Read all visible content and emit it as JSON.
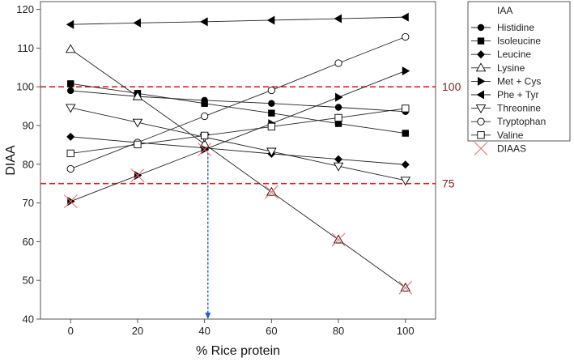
{
  "chart_data": {
    "type": "line",
    "xlabel": "% Rice protein",
    "ylabel": "DIAA",
    "x": [
      0,
      20,
      40,
      60,
      80,
      100
    ],
    "xlim": [
      -9,
      109
    ],
    "ylim": [
      40,
      122
    ],
    "xticks": [
      "0",
      "20",
      "40",
      "60",
      "80",
      "100"
    ],
    "yticks": [
      "40",
      "50",
      "60",
      "70",
      "80",
      "90",
      "100",
      "110",
      "120"
    ],
    "grid": false,
    "legend": {
      "title": "IAA",
      "placement": "right"
    },
    "series": [
      {
        "name": "Histidine",
        "marker": "circle-filled",
        "values": [
          99,
          97.5,
          96.5,
          95.7,
          94.7,
          93.6
        ]
      },
      {
        "name": "Isoleucine",
        "marker": "square-filled",
        "values": [
          100.8,
          98.3,
          95.7,
          93.2,
          90.5,
          88.0
        ]
      },
      {
        "name": "Leucine",
        "marker": "diamond-filled",
        "values": [
          87.1,
          85.6,
          84.2,
          82.7,
          81.3,
          79.9
        ]
      },
      {
        "name": "Lysine",
        "marker": "triangle-up-open",
        "values": [
          109.7,
          97.5,
          85.2,
          72.8,
          60.5,
          48.1
        ]
      },
      {
        "name": "Met + Cys",
        "marker": "triangle-right-filled",
        "values": [
          70.4,
          77.1,
          83.8,
          90.5,
          97.3,
          104.1
        ]
      },
      {
        "name": "Phe + Tyr",
        "marker": "triangle-left-filled",
        "values": [
          116.1,
          116.5,
          116.8,
          117.2,
          117.6,
          118.0
        ]
      },
      {
        "name": "Threonine",
        "marker": "triangle-down-open",
        "values": [
          94.6,
          90.8,
          87.0,
          83.3,
          79.5,
          75.8
        ]
      },
      {
        "name": "Tryptophan",
        "marker": "circle-open",
        "values": [
          78.8,
          85.6,
          92.4,
          99.1,
          106.1,
          112.9
        ]
      },
      {
        "name": "Valine",
        "marker": "square-open",
        "values": [
          82.8,
          85.1,
          87.4,
          89.7,
          92.0,
          94.4
        ]
      },
      {
        "name": "DIAAS",
        "marker": "x-red",
        "line": false,
        "values": [
          70.4,
          77.1,
          83.8,
          72.8,
          60.5,
          48.1
        ]
      }
    ],
    "reference_lines": [
      {
        "y": 100,
        "label": "100",
        "color": "#dd2222"
      },
      {
        "y": 75,
        "label": "75",
        "color": "#dd2222"
      }
    ],
    "annotation": {
      "type": "arrow",
      "x": 41,
      "from_y": 84,
      "to_y": 40,
      "color": "#1f5fd6"
    }
  }
}
